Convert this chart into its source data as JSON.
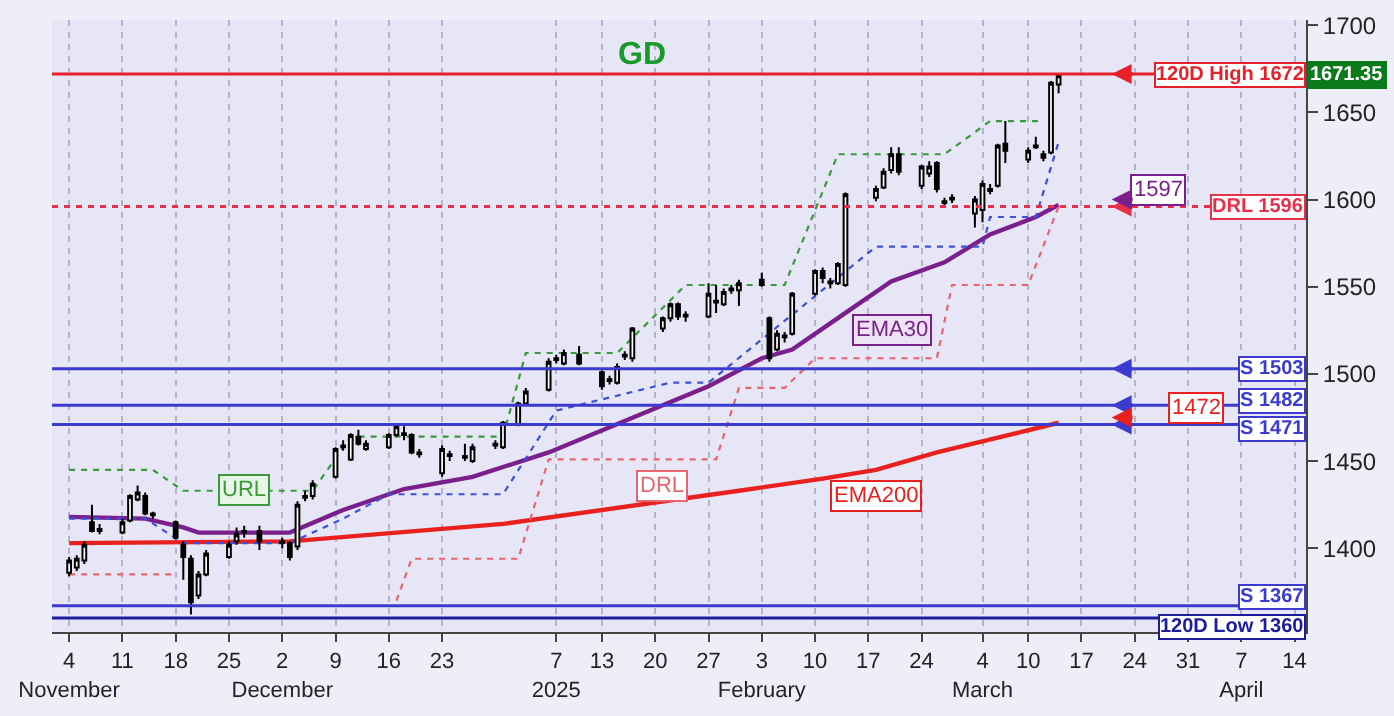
{
  "chart_data": {
    "type": "candlestick",
    "x": [
      "2024-11-04",
      "2024-11-05",
      "2024-11-06",
      "2024-11-07",
      "2024-11-08",
      "2024-11-11",
      "2024-11-12",
      "2024-11-13",
      "2024-11-14",
      "2024-11-15",
      "2024-11-18",
      "2024-11-19",
      "2024-11-20",
      "2024-11-21",
      "2024-11-22",
      "2024-11-25",
      "2024-11-26",
      "2024-11-27",
      "2024-11-29",
      "2024-12-02",
      "2024-12-03",
      "2024-12-04",
      "2024-12-05",
      "2024-12-06",
      "2024-12-09",
      "2024-12-10",
      "2024-12-11",
      "2024-12-12",
      "2024-12-13",
      "2024-12-16",
      "2024-12-17",
      "2024-12-18",
      "2024-12-19",
      "2024-12-20",
      "2024-12-23",
      "2024-12-24",
      "2024-12-26",
      "2024-12-27",
      "2024-12-30",
      "2024-12-31",
      "2025-01-02",
      "2025-01-03",
      "2025-01-06",
      "2025-01-07",
      "2025-01-08",
      "2025-01-10",
      "2025-01-13",
      "2025-01-14",
      "2025-01-15",
      "2025-01-16",
      "2025-01-17",
      "2025-01-21",
      "2025-01-22",
      "2025-01-23",
      "2025-01-24",
      "2025-01-27",
      "2025-01-28",
      "2025-01-29",
      "2025-01-30",
      "2025-01-31",
      "2025-02-03",
      "2025-02-04",
      "2025-02-05",
      "2025-02-06",
      "2025-02-07",
      "2025-02-10",
      "2025-02-11",
      "2025-02-12",
      "2025-02-13",
      "2025-02-14",
      "2025-02-18",
      "2025-02-19",
      "2025-02-20",
      "2025-02-21",
      "2025-02-24",
      "2025-02-25",
      "2025-02-26",
      "2025-02-27",
      "2025-02-28",
      "2025-03-03",
      "2025-03-04",
      "2025-03-05",
      "2025-03-06",
      "2025-03-07",
      "2025-03-10",
      "2025-03-11",
      "2025-03-12",
      "2025-03-13",
      "2025-03-14"
    ],
    "ohlc": [
      [
        1386,
        1395,
        1384,
        1393
      ],
      [
        1389,
        1396,
        1387,
        1394
      ],
      [
        1393,
        1404,
        1391,
        1402
      ],
      [
        1415,
        1425,
        1409,
        1410
      ],
      [
        1410,
        1414,
        1408,
        1411
      ],
      [
        1409,
        1417,
        1408,
        1415
      ],
      [
        1416,
        1431,
        1415,
        1430
      ],
      [
        1428,
        1436,
        1427,
        1432
      ],
      [
        1430,
        1432,
        1419,
        1420
      ],
      [
        1420,
        1421,
        1417,
        1419
      ],
      [
        1415,
        1416,
        1405,
        1406
      ],
      [
        1402,
        1404,
        1382,
        1395
      ],
      [
        1394,
        1396,
        1362,
        1369
      ],
      [
        1373,
        1387,
        1371,
        1385
      ],
      [
        1385,
        1399,
        1384,
        1397
      ],
      [
        1395,
        1404,
        1394,
        1402
      ],
      [
        1404,
        1412,
        1402,
        1408
      ],
      [
        1409,
        1413,
        1406,
        1410
      ],
      [
        1410,
        1413,
        1399,
        1404
      ],
      [
        1404,
        1406,
        1400,
        1403
      ],
      [
        1403,
        1404,
        1393,
        1395
      ],
      [
        1401,
        1427,
        1399,
        1425
      ],
      [
        1429,
        1433,
        1427,
        1430
      ],
      [
        1430,
        1439,
        1428,
        1437
      ],
      [
        1441,
        1458,
        1440,
        1457
      ],
      [
        1458,
        1462,
        1456,
        1459
      ],
      [
        1451,
        1466,
        1450,
        1465
      ],
      [
        1464,
        1468,
        1459,
        1460
      ],
      [
        1457,
        1462,
        1456,
        1460
      ],
      [
        1458,
        1466,
        1457,
        1465
      ],
      [
        1465,
        1471,
        1464,
        1470
      ],
      [
        1466,
        1470,
        1462,
        1465
      ],
      [
        1465,
        1466,
        1454,
        1455
      ],
      [
        1455,
        1457,
        1452,
        1454
      ],
      [
        1443,
        1459,
        1441,
        1457
      ],
      [
        1454,
        1456,
        1450,
        1453
      ],
      [
        1452,
        1460,
        1450,
        1453
      ],
      [
        1450,
        1460,
        1449,
        1458
      ],
      [
        1459,
        1462,
        1457,
        1460
      ],
      [
        1458,
        1473,
        1457,
        1472
      ],
      [
        1471,
        1484,
        1470,
        1483
      ],
      [
        1483,
        1492,
        1482,
        1490
      ],
      [
        1491,
        1509,
        1490,
        1507
      ],
      [
        1508,
        1511,
        1506,
        1509
      ],
      [
        1506,
        1514,
        1505,
        1512
      ],
      [
        1511,
        1516,
        1505,
        1506
      ],
      [
        1501,
        1502,
        1491,
        1493
      ],
      [
        1496,
        1499,
        1494,
        1497
      ],
      [
        1495,
        1506,
        1494,
        1504
      ],
      [
        1510,
        1513,
        1508,
        1511
      ],
      [
        1509,
        1527,
        1507,
        1526
      ],
      [
        1526,
        1533,
        1524,
        1532
      ],
      [
        1532,
        1541,
        1530,
        1540
      ],
      [
        1540,
        1541,
        1531,
        1533
      ],
      [
        1533,
        1536,
        1530,
        1534
      ],
      [
        1533,
        1552,
        1532,
        1546
      ],
      [
        1541,
        1551,
        1535,
        1542
      ],
      [
        1540,
        1549,
        1539,
        1547
      ],
      [
        1548,
        1551,
        1546,
        1549
      ],
      [
        1548,
        1554,
        1539,
        1552
      ],
      [
        1554,
        1558,
        1550,
        1551
      ],
      [
        1532,
        1533,
        1507,
        1509
      ],
      [
        1514,
        1525,
        1513,
        1523
      ],
      [
        1521,
        1524,
        1518,
        1522
      ],
      [
        1523,
        1547,
        1522,
        1546
      ],
      [
        1546,
        1560,
        1545,
        1559
      ],
      [
        1559,
        1561,
        1552,
        1555
      ],
      [
        1552,
        1555,
        1549,
        1553
      ],
      [
        1552,
        1564,
        1551,
        1563
      ],
      [
        1551,
        1604,
        1550,
        1603
      ],
      [
        1601,
        1608,
        1599,
        1606
      ],
      [
        1607,
        1618,
        1606,
        1616
      ],
      [
        1617,
        1630,
        1615,
        1626
      ],
      [
        1626,
        1630,
        1614,
        1616
      ],
      [
        1608,
        1620,
        1606,
        1619
      ],
      [
        1615,
        1622,
        1613,
        1619
      ],
      [
        1621,
        1622,
        1604,
        1606
      ],
      [
        1599,
        1601,
        1596,
        1598
      ],
      [
        1600,
        1603,
        1598,
        1601
      ],
      [
        1592,
        1602,
        1584,
        1600
      ],
      [
        1594,
        1611,
        1587,
        1609
      ],
      [
        1606,
        1609,
        1603,
        1605
      ],
      [
        1608,
        1632,
        1607,
        1631
      ],
      [
        1632,
        1645,
        1621,
        1628
      ],
      [
        1623,
        1630,
        1621,
        1628
      ],
      [
        1630,
        1636,
        1629,
        1631
      ],
      [
        1624,
        1628,
        1622,
        1626
      ],
      [
        1627,
        1668,
        1626,
        1667
      ],
      [
        1666,
        1672,
        1661,
        1671.35
      ]
    ],
    "series": [
      {
        "name": "EMA30",
        "type": "line",
        "color": "#7b1f8c",
        "line_style": "solid",
        "x": [
          "2024-11-04",
          "2024-11-14",
          "2024-11-19",
          "2024-11-21",
          "2024-12-03",
          "2024-12-10",
          "2024-12-18",
          "2024-12-27",
          "2025-01-06",
          "2025-01-27",
          "2025-02-03",
          "2025-02-07",
          "2025-02-14",
          "2025-02-20",
          "2025-02-27",
          "2025-03-05",
          "2025-03-11",
          "2025-03-14"
        ],
        "values": [
          1418,
          1417,
          1412,
          1409,
          1409,
          1422,
          1434,
          1441,
          1455,
          1493,
          1509,
          1514,
          1535,
          1553,
          1564,
          1580,
          1590,
          1597
        ]
      },
      {
        "name": "EMA200",
        "type": "line",
        "color": "#e8211e",
        "line_style": "solid",
        "x": [
          "2024-11-04",
          "2024-12-03",
          "2024-12-31",
          "2025-01-31",
          "2025-02-11",
          "2025-02-18",
          "2025-02-26",
          "2025-03-14"
        ],
        "values": [
          1403,
          1404,
          1414,
          1433,
          1440,
          1445,
          1455,
          1472
        ]
      },
      {
        "name": "DRL",
        "type": "line",
        "color": "#e8646e",
        "line_style": "dotted",
        "x": [
          "2024-11-04",
          "2024-11-18",
          "2024-12-02",
          "2024-12-17",
          "2024-12-19",
          "2025-01-02",
          "2025-01-06",
          "2025-01-21",
          "2025-01-28",
          "2025-01-31",
          "2025-02-06",
          "2025-02-10",
          "2025-02-26",
          "2025-02-28",
          "2025-03-10",
          "2025-03-14"
        ],
        "values": [
          1385,
          1385,
          null,
          1370,
          1394,
          1394,
          1451,
          1451,
          1451,
          1492,
          1492,
          1509,
          1509,
          1551,
          1551,
          1596
        ]
      },
      {
        "name": "URL",
        "type": "line",
        "color": "#3a9a3a",
        "line_style": "dotted",
        "x": [
          "2024-11-04",
          "2024-11-15",
          "2024-11-19",
          "2024-11-27",
          "2024-12-06",
          "2024-12-11",
          "2024-12-31",
          "2025-01-03",
          "2025-01-15",
          "2025-01-24",
          "2025-02-06",
          "2025-02-13",
          "2025-02-27",
          "2025-03-05",
          "2025-03-12"
        ],
        "values": [
          1445,
          1445,
          1433,
          1433,
          1433,
          1464,
          1464,
          1512,
          1512,
          1551,
          1551,
          1626,
          1626,
          1645,
          1645
        ]
      },
      {
        "type": "line",
        "color": "#3c50d8",
        "line_style": "dotted",
        "x": [
          "2024-11-04",
          "2024-11-14",
          "2024-11-19",
          "2024-12-03",
          "2024-12-10",
          "2024-12-16",
          "2024-12-31",
          "2025-01-07",
          "2025-01-22",
          "2025-01-27",
          "2025-02-18",
          "2025-03-04",
          "2025-03-05",
          "2025-03-11",
          "2025-03-14"
        ],
        "values": [
          1417,
          1417,
          1403,
          1403,
          1417,
          1431,
          1431,
          1479,
          1495,
          1495,
          1573,
          1573,
          1590,
          1590,
          1633
        ]
      }
    ],
    "ylim": [
      1352,
      1703
    ],
    "yticks": [
      1400,
      1450,
      1500,
      1550,
      1600,
      1650,
      1700
    ],
    "xlim": [
      "2024-11-01T18:00",
      "2025-04-15T12:00"
    ],
    "xticks": [
      {
        "value": "2024-11-04",
        "label": "4\nNovember"
      },
      {
        "value": "2024-11-11",
        "label": "11"
      },
      {
        "value": "2024-11-18",
        "label": "18"
      },
      {
        "value": "2024-11-25",
        "label": "25"
      },
      {
        "value": "2024-12-02",
        "label": "2\nDecember"
      },
      {
        "value": "2024-12-09",
        "label": "9"
      },
      {
        "value": "2024-12-16",
        "label": "16"
      },
      {
        "value": "2024-12-23",
        "label": "23"
      },
      {
        "value": "2025-01-07",
        "label": "7\n2025"
      },
      {
        "value": "2025-01-13",
        "label": "13"
      },
      {
        "value": "2025-01-20",
        "label": "20"
      },
      {
        "value": "2025-01-27",
        "label": "27"
      },
      {
        "value": "2025-02-03",
        "label": "3\nFebruary"
      },
      {
        "value": "2025-02-10",
        "label": "10"
      },
      {
        "value": "2025-02-17",
        "label": "17"
      },
      {
        "value": "2025-02-24",
        "label": "24"
      },
      {
        "value": "2025-03-04",
        "label": "4\nMarch"
      },
      {
        "value": "2025-03-10",
        "label": "10"
      },
      {
        "value": "2025-03-17",
        "label": "17"
      },
      {
        "value": "2025-03-24",
        "label": "24"
      },
      {
        "value": "2025-03-31",
        "label": "31"
      },
      {
        "value": "2025-04-07",
        "label": "7\nApril"
      },
      {
        "value": "2025-04-14",
        "label": "14"
      }
    ],
    "ref_lines": [
      {
        "axis": "y",
        "value": 1672,
        "label": "120D High 1672",
        "color": "#e8202a",
        "line_style": "solid"
      },
      {
        "axis": "y",
        "value": 1596,
        "label": "DRL 1596",
        "color": "#e8304a",
        "line_style": "dotted"
      },
      {
        "axis": "y",
        "value": 1503,
        "label": "S 1503",
        "color": "#3b3bd0",
        "line_style": "solid"
      },
      {
        "axis": "y",
        "value": 1482,
        "label": "S 1482",
        "color": "#3b3bd0",
        "line_style": "solid"
      },
      {
        "axis": "y",
        "value": 1471,
        "label": "S 1471",
        "color": "#3b3bd0",
        "line_style": "solid"
      },
      {
        "axis": "y",
        "value": 1367,
        "label": "S 1367",
        "color": "#3b3bd0",
        "line_style": "solid"
      },
      {
        "axis": "y",
        "value": 1360,
        "label": "120D Low 1360",
        "color": "#1c1c9c",
        "line_style": "solid"
      }
    ],
    "annotations": [
      "GD",
      {
        "text": "1597",
        "x": "2025-03-27",
        "y": 1597
      },
      {
        "text": "1472",
        "x": "2025-04-01",
        "y": 1472
      },
      "1671.35"
    ],
    "grid": "x",
    "legend": false,
    "marker": "none"
  }
}
